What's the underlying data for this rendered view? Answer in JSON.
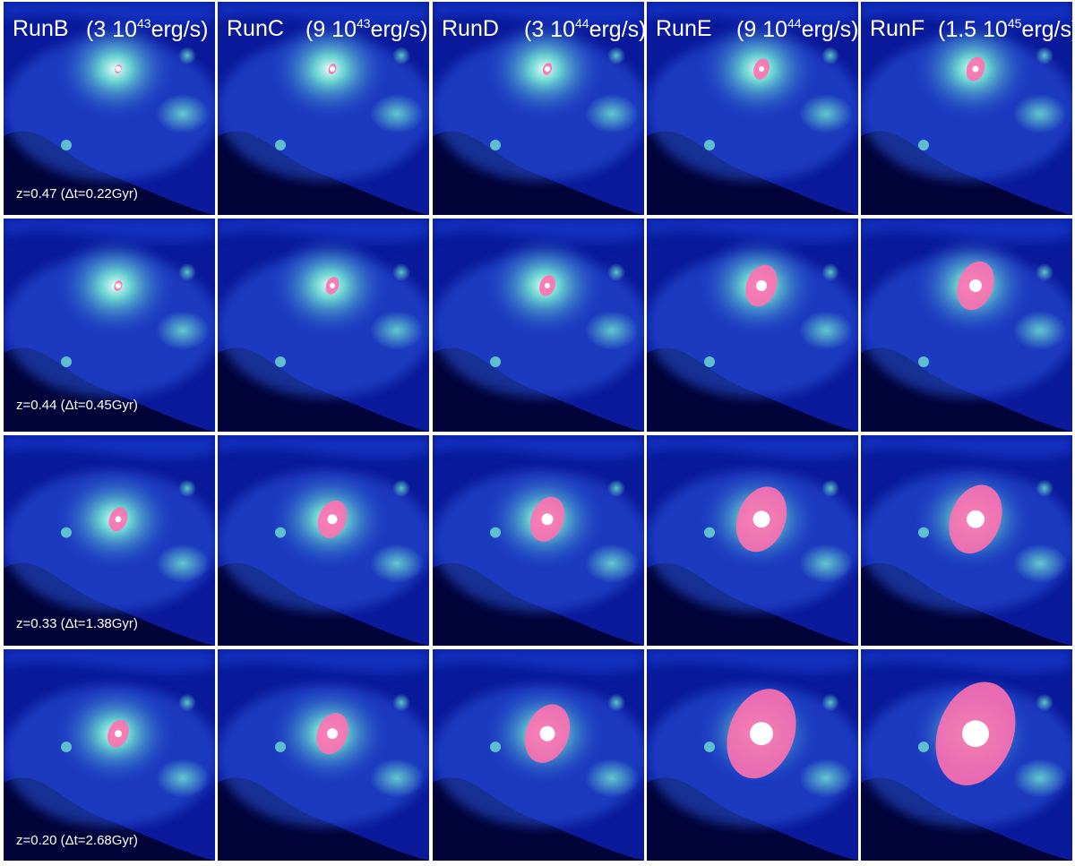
{
  "columns": [
    {
      "run": "RunB",
      "lum_prefix": "(3 10",
      "lum_exp": "43",
      "lum_suffix": "erg/s)"
    },
    {
      "run": "RunC",
      "lum_prefix": "(9 10",
      "lum_exp": "43",
      "lum_suffix": "erg/s)"
    },
    {
      "run": "RunD",
      "lum_prefix": "(3 10",
      "lum_exp": "44",
      "lum_suffix": "erg/s)"
    },
    {
      "run": "RunE",
      "lum_prefix": "(9 10",
      "lum_exp": "44",
      "lum_suffix": "erg/s)"
    },
    {
      "run": "RunF",
      "lum_prefix": "(1.5 10",
      "lum_exp": "45",
      "lum_suffix": "erg/s)"
    }
  ],
  "rows": [
    {
      "label": "z=0.47  (Δt=0.22Gyr)"
    },
    {
      "label": "z=0.44  (Δt=0.45Gyr)"
    },
    {
      "label": "z=0.33  (Δt=1.38Gyr)"
    },
    {
      "label": "z=0.20  (Δt=2.68Gyr)"
    }
  ],
  "colors": {
    "background": "#000010",
    "gas_blue": "#1530c8",
    "gas_cyan": "#6fe0d0",
    "jet_pink": "#ff70b0",
    "separator": "#ffffff"
  }
}
